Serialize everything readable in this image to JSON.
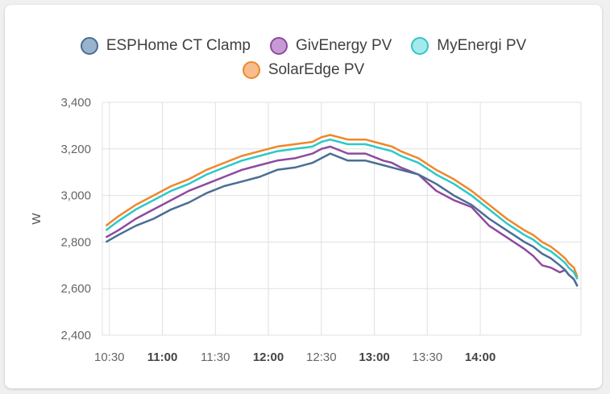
{
  "chart_data": {
    "type": "line",
    "ylabel": "W",
    "ylim": [
      2400,
      3400
    ],
    "xlim": [
      "10:26",
      "14:57"
    ],
    "yticks": [
      "2,400",
      "2,600",
      "2,800",
      "3,000",
      "3,200",
      "3,400"
    ],
    "xticks": [
      {
        "label": "10:30",
        "bold": false
      },
      {
        "label": "11:00",
        "bold": true
      },
      {
        "label": "11:30",
        "bold": false
      },
      {
        "label": "12:00",
        "bold": true
      },
      {
        "label": "12:30",
        "bold": false
      },
      {
        "label": "13:00",
        "bold": true
      },
      {
        "label": "13:30",
        "bold": false
      },
      {
        "label": "14:00",
        "bold": true
      }
    ],
    "grid": true,
    "legend_position": "top",
    "series": [
      {
        "name": "ESPHome CT Clamp",
        "color": "#4a6e94",
        "fill": "#9ab3cc",
        "x": [
          "10:28",
          "10:35",
          "10:45",
          "10:55",
          "11:05",
          "11:15",
          "11:25",
          "11:35",
          "11:45",
          "11:55",
          "12:05",
          "12:15",
          "12:25",
          "12:30",
          "12:35",
          "12:45",
          "12:55",
          "13:05",
          "13:10",
          "13:15",
          "13:25",
          "13:35",
          "13:45",
          "13:55",
          "14:05",
          "14:15",
          "14:25",
          "14:30",
          "14:35",
          "14:40",
          "14:45",
          "14:48",
          "14:50",
          "14:53",
          "14:55"
        ],
        "y": [
          2800,
          2830,
          2870,
          2900,
          2940,
          2970,
          3010,
          3040,
          3060,
          3080,
          3110,
          3120,
          3140,
          3160,
          3180,
          3150,
          3150,
          3130,
          3120,
          3110,
          3090,
          3050,
          3000,
          2960,
          2900,
          2850,
          2800,
          2780,
          2750,
          2730,
          2700,
          2680,
          2660,
          2640,
          2610
        ]
      },
      {
        "name": "GivEnergy PV",
        "color": "#8e4a9e",
        "fill": "#c89ad4",
        "x": [
          "10:28",
          "10:35",
          "10:45",
          "10:55",
          "11:05",
          "11:15",
          "11:25",
          "11:35",
          "11:45",
          "11:55",
          "12:05",
          "12:15",
          "12:25",
          "12:30",
          "12:35",
          "12:45",
          "12:55",
          "13:05",
          "13:10",
          "13:15",
          "13:25",
          "13:35",
          "13:45",
          "13:55",
          "14:05",
          "14:15",
          "14:25",
          "14:30",
          "14:35",
          "14:40",
          "14:45",
          "14:48",
          "14:50",
          "14:53",
          "14:55"
        ],
        "y": [
          2820,
          2850,
          2900,
          2940,
          2980,
          3020,
          3050,
          3080,
          3110,
          3130,
          3150,
          3160,
          3180,
          3200,
          3210,
          3180,
          3180,
          3150,
          3140,
          3120,
          3090,
          3020,
          2980,
          2950,
          2870,
          2820,
          2770,
          2740,
          2700,
          2690,
          2670,
          2680,
          2660,
          2640,
          2610
        ]
      },
      {
        "name": "MyEnergi PV",
        "color": "#2ec8c8",
        "fill": "#a6e9ec",
        "x": [
          "10:28",
          "10:35",
          "10:45",
          "10:55",
          "11:05",
          "11:15",
          "11:25",
          "11:35",
          "11:45",
          "11:55",
          "12:05",
          "12:15",
          "12:25",
          "12:30",
          "12:35",
          "12:45",
          "12:55",
          "13:05",
          "13:10",
          "13:15",
          "13:25",
          "13:35",
          "13:45",
          "13:55",
          "14:05",
          "14:15",
          "14:25",
          "14:30",
          "14:35",
          "14:40",
          "14:45",
          "14:48",
          "14:50",
          "14:53",
          "14:55"
        ],
        "y": [
          2850,
          2890,
          2940,
          2980,
          3020,
          3050,
          3090,
          3120,
          3150,
          3170,
          3190,
          3200,
          3210,
          3230,
          3240,
          3220,
          3220,
          3200,
          3190,
          3170,
          3140,
          3090,
          3050,
          3000,
          2940,
          2880,
          2830,
          2810,
          2780,
          2760,
          2730,
          2710,
          2690,
          2670,
          2640
        ]
      },
      {
        "name": "SolarEdge PV",
        "color": "#f0872a",
        "fill": "#f7bd8c",
        "x": [
          "10:28",
          "10:35",
          "10:45",
          "10:55",
          "11:05",
          "11:15",
          "11:25",
          "11:35",
          "11:45",
          "11:55",
          "12:05",
          "12:15",
          "12:25",
          "12:30",
          "12:35",
          "12:45",
          "12:55",
          "13:05",
          "13:10",
          "13:15",
          "13:25",
          "13:35",
          "13:45",
          "13:55",
          "14:05",
          "14:15",
          "14:25",
          "14:30",
          "14:35",
          "14:40",
          "14:45",
          "14:48",
          "14:50",
          "14:53",
          "14:55"
        ],
        "y": [
          2870,
          2910,
          2960,
          3000,
          3040,
          3070,
          3110,
          3140,
          3170,
          3190,
          3210,
          3220,
          3230,
          3250,
          3260,
          3240,
          3240,
          3220,
          3210,
          3190,
          3160,
          3110,
          3070,
          3020,
          2960,
          2900,
          2850,
          2830,
          2800,
          2780,
          2750,
          2730,
          2710,
          2690,
          2650
        ]
      }
    ]
  }
}
